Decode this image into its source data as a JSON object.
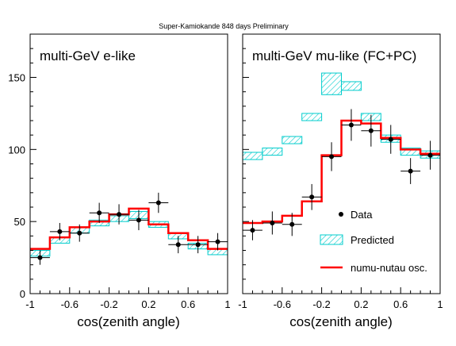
{
  "figure_title": "Super-Kamiokande 848 days Preliminary",
  "chart_data": [
    {
      "type": "bar",
      "title": "multi-GeV e-like",
      "xlabel": "cos(zenith angle)",
      "ylabel": "",
      "xlim": [
        -1,
        1
      ],
      "ylim": [
        0,
        180
      ],
      "x_ticks": [
        "-1",
        "-0.6",
        "-0.2",
        "0.2",
        "0.6",
        "1"
      ],
      "y_ticks": [
        "0",
        "50",
        "100",
        "150"
      ],
      "bin_edges": [
        -1,
        -0.8,
        -0.6,
        -0.4,
        -0.2,
        0,
        0.2,
        0.4,
        0.6,
        0.8,
        1
      ],
      "series": [
        {
          "name": "Data",
          "kind": "points",
          "x": [
            -0.9,
            -0.7,
            -0.5,
            -0.3,
            -0.1,
            0.1,
            0.3,
            0.5,
            0.7,
            0.9
          ],
          "values": [
            25,
            43,
            42,
            56,
            55,
            51,
            63,
            34,
            34,
            36
          ],
          "errors": [
            5,
            6,
            6,
            7,
            7,
            7,
            7,
            6,
            6,
            6
          ]
        },
        {
          "name": "Predicted",
          "kind": "hatched-band",
          "low": [
            26,
            35,
            42,
            47,
            50,
            52,
            46,
            38,
            31,
            27
          ],
          "high": [
            30,
            39,
            46,
            51,
            54,
            57,
            50,
            42,
            35,
            31
          ]
        },
        {
          "name": "numu-nutau osc.",
          "kind": "step",
          "values": [
            31,
            39,
            46,
            50,
            55,
            59,
            48,
            42,
            37,
            31
          ]
        }
      ]
    },
    {
      "type": "bar",
      "title": "multi-GeV mu-like (FC+PC)",
      "xlabel": "cos(zenith angle)",
      "ylabel": "",
      "xlim": [
        -1,
        1
      ],
      "ylim": [
        0,
        180
      ],
      "x_ticks": [
        "-1",
        "-0.6",
        "-0.2",
        "0.2",
        "0.6",
        "1"
      ],
      "y_ticks": [
        "0",
        "50",
        "100",
        "150"
      ],
      "bin_edges": [
        -1,
        -0.8,
        -0.6,
        -0.4,
        -0.2,
        0,
        0.2,
        0.4,
        0.6,
        0.8,
        1
      ],
      "series": [
        {
          "name": "Data",
          "kind": "points",
          "x": [
            -0.9,
            -0.7,
            -0.5,
            -0.3,
            -0.1,
            0.1,
            0.3,
            0.5,
            0.7,
            0.9
          ],
          "values": [
            44,
            49,
            48,
            67,
            95,
            117,
            113,
            107,
            85,
            96
          ],
          "errors": [
            7,
            8,
            8,
            9,
            10,
            11,
            11,
            10,
            9,
            10
          ]
        },
        {
          "name": "Predicted",
          "kind": "hatched-band",
          "low": [
            93,
            96,
            104,
            120,
            138,
            141,
            120,
            105,
            96,
            94
          ],
          "high": [
            98,
            101,
            109,
            125,
            153,
            147,
            125,
            110,
            101,
            99
          ]
        },
        {
          "name": "numu-nutau osc.",
          "kind": "step",
          "values": [
            49,
            50,
            54,
            64,
            96,
            120,
            118,
            108,
            100,
            97
          ]
        }
      ],
      "legend": {
        "placement": "bottom-right",
        "entries": [
          "Data",
          "Predicted",
          "numu-nutau osc."
        ]
      }
    }
  ],
  "colors": {
    "predicted": "#00cccc",
    "oscillation": "#ff0000",
    "data": "#000000"
  }
}
